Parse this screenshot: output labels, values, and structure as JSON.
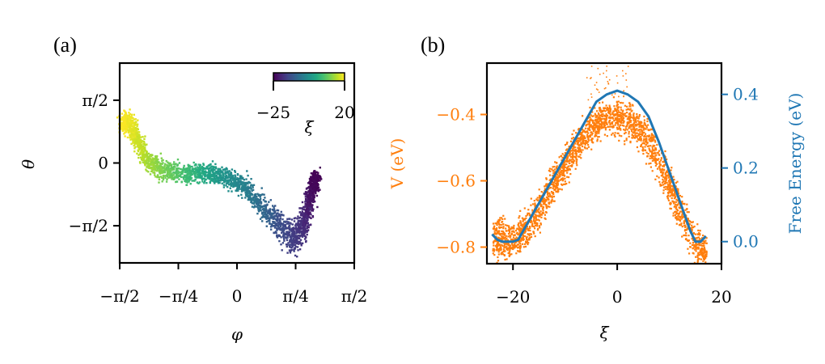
{
  "colors": {
    "scatter_b": "#ff7f0e",
    "line_b": "#1f77b4",
    "viridis": [
      "#440154",
      "#482475",
      "#414487",
      "#355f8d",
      "#2a788e",
      "#21918c",
      "#22a884",
      "#44bf70",
      "#7ad151",
      "#bddf26",
      "#fde725"
    ]
  },
  "chart_data": [
    {
      "panel": "(a)",
      "type": "scatter",
      "xlabel": "φ",
      "ylabel": "θ",
      "xlim": [
        -1.5708,
        1.5708
      ],
      "ylim": [
        -2.5,
        2.5
      ],
      "xticks": [
        -1.5708,
        -0.7854,
        0,
        0.7854,
        1.5708
      ],
      "xtick_labels": [
        "−π/2",
        "−π/4",
        "0",
        "π/4",
        "π/2"
      ],
      "yticks": [
        -1.5708,
        0,
        1.5708
      ],
      "ytick_labels": [
        "−π/2",
        "0",
        "π/2"
      ],
      "colorbar": {
        "label": "ξ",
        "min": -25,
        "max": 20,
        "min_label": "−25",
        "max_label": "20",
        "colormap": "viridis"
      },
      "ridge": [
        {
          "phi": -1.55,
          "theta": 1.05,
          "xi": 20,
          "width": 0.25
        },
        {
          "phi": -1.45,
          "theta": 1.0,
          "xi": 19,
          "width": 0.3
        },
        {
          "phi": -1.35,
          "theta": 0.6,
          "xi": 17,
          "width": 0.28
        },
        {
          "phi": -1.2,
          "theta": 0.05,
          "xi": 14,
          "width": 0.25
        },
        {
          "phi": -1.0,
          "theta": -0.15,
          "xi": 11,
          "width": 0.25
        },
        {
          "phi": -0.7,
          "theta": -0.25,
          "xi": 6,
          "width": 0.25
        },
        {
          "phi": -0.45,
          "theta": -0.22,
          "xi": 2,
          "width": 0.25
        },
        {
          "phi": -0.2,
          "theta": -0.3,
          "xi": -2,
          "width": 0.25
        },
        {
          "phi": 0.05,
          "theta": -0.5,
          "xi": -5,
          "width": 0.25
        },
        {
          "phi": 0.3,
          "theta": -1.0,
          "xi": -9,
          "width": 0.3
        },
        {
          "phi": 0.55,
          "theta": -1.5,
          "xi": -14,
          "width": 0.35
        },
        {
          "phi": 0.75,
          "theta": -1.85,
          "xi": -17,
          "width": 0.4
        },
        {
          "phi": 0.88,
          "theta": -1.5,
          "xi": -19,
          "width": 0.4
        },
        {
          "phi": 0.95,
          "theta": -1.0,
          "xi": -22,
          "width": 0.4
        },
        {
          "phi": 1.02,
          "theta": -0.55,
          "xi": -24,
          "width": 0.3
        },
        {
          "phi": 1.05,
          "theta": -0.3,
          "xi": -25,
          "width": 0.15
        }
      ]
    },
    {
      "panel": "(b)",
      "type": "scatter+line",
      "xlabel": "ξ",
      "ylabel_left": "V (eV)",
      "ylabel_right": "Free Energy (eV)",
      "xlim": [
        -25,
        20
      ],
      "ylim_left": [
        -0.85,
        -0.245
      ],
      "ylim_right": [
        -0.06,
        0.485
      ],
      "xticks": [
        -20,
        0,
        20
      ],
      "xtick_labels": [
        "−20",
        "0",
        "20"
      ],
      "yticks_left": [
        -0.8,
        -0.6,
        -0.4
      ],
      "ytick_labels_left": [
        "−0.8",
        "−0.6",
        "−0.4"
      ],
      "yticks_right": [
        0.0,
        0.2,
        0.4
      ],
      "ytick_labels_right": [
        "0.0",
        "0.2",
        "0.4"
      ],
      "potential_band": {
        "x": [
          -24,
          -22,
          -20,
          -18,
          -15,
          -12,
          -9,
          -6,
          -3,
          0,
          3,
          6,
          9,
          12,
          15,
          17
        ],
        "lo": [
          -0.82,
          -0.83,
          -0.82,
          -0.8,
          -0.73,
          -0.64,
          -0.56,
          -0.49,
          -0.45,
          -0.45,
          -0.47,
          -0.53,
          -0.64,
          -0.74,
          -0.84,
          -0.85
        ],
        "hi": [
          -0.73,
          -0.72,
          -0.74,
          -0.7,
          -0.63,
          -0.55,
          -0.47,
          -0.41,
          -0.37,
          -0.36,
          -0.38,
          -0.43,
          -0.53,
          -0.64,
          -0.74,
          -0.78
        ]
      },
      "free_energy": {
        "x": [
          -24,
          -23,
          -22,
          -21,
          -20,
          -19,
          -18,
          -16,
          -14,
          -12,
          -10,
          -8,
          -6,
          -4,
          -2,
          0,
          2,
          4,
          6,
          8,
          10,
          12,
          14,
          15,
          16,
          17
        ],
        "y": [
          0.02,
          0.005,
          0.0,
          0.0,
          0.0,
          0.005,
          0.03,
          0.08,
          0.13,
          0.18,
          0.23,
          0.28,
          0.33,
          0.38,
          0.4,
          0.41,
          0.4,
          0.38,
          0.34,
          0.27,
          0.19,
          0.11,
          0.03,
          0.0,
          0.0,
          0.015
        ]
      }
    }
  ]
}
